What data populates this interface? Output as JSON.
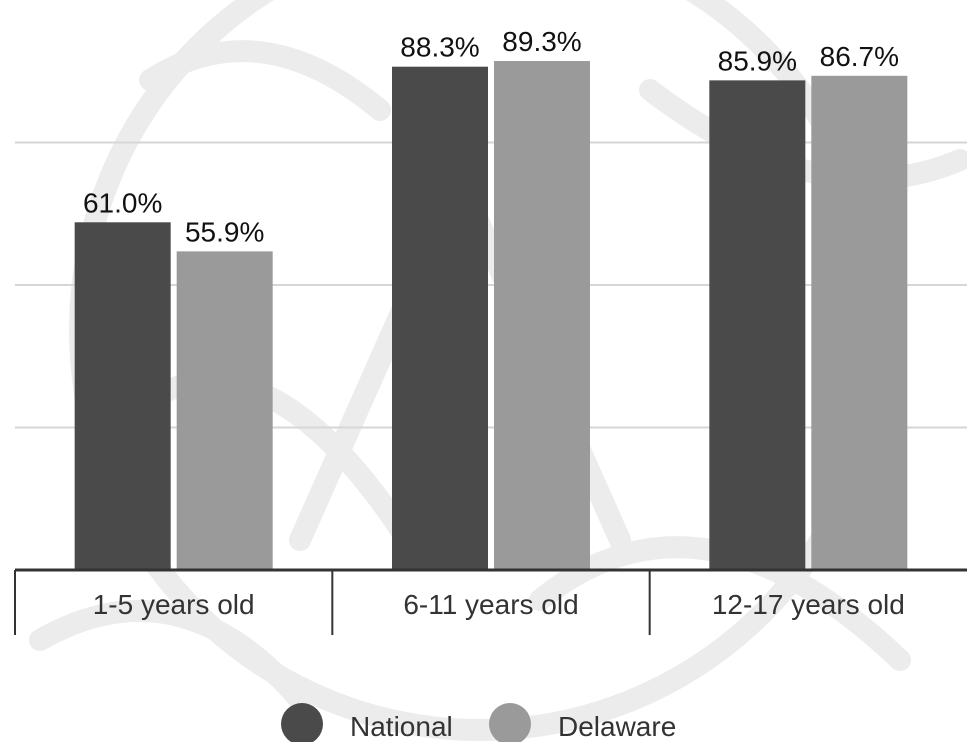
{
  "chart_data": {
    "type": "bar",
    "title": "",
    "xlabel": "",
    "ylabel": "",
    "categories": [
      "1-5 years old",
      "6-11 years old",
      "12-17 years old"
    ],
    "series": [
      {
        "name": "National",
        "color": "#4a4a4a",
        "values": [
          61.0,
          88.3,
          85.9
        ],
        "labels": [
          "61.0%",
          "88.3%",
          "85.9%"
        ]
      },
      {
        "name": "Delaware",
        "color": "#9a9a9a",
        "values": [
          55.9,
          89.3,
          86.7
        ],
        "labels": [
          "55.9%",
          "89.3%",
          "86.7%"
        ]
      }
    ],
    "ylim": [
      0,
      100
    ],
    "grid": true,
    "gridlines_at": [
      25,
      50,
      75
    ],
    "legend_position": "bottom-center",
    "background": "watermark-seal"
  }
}
